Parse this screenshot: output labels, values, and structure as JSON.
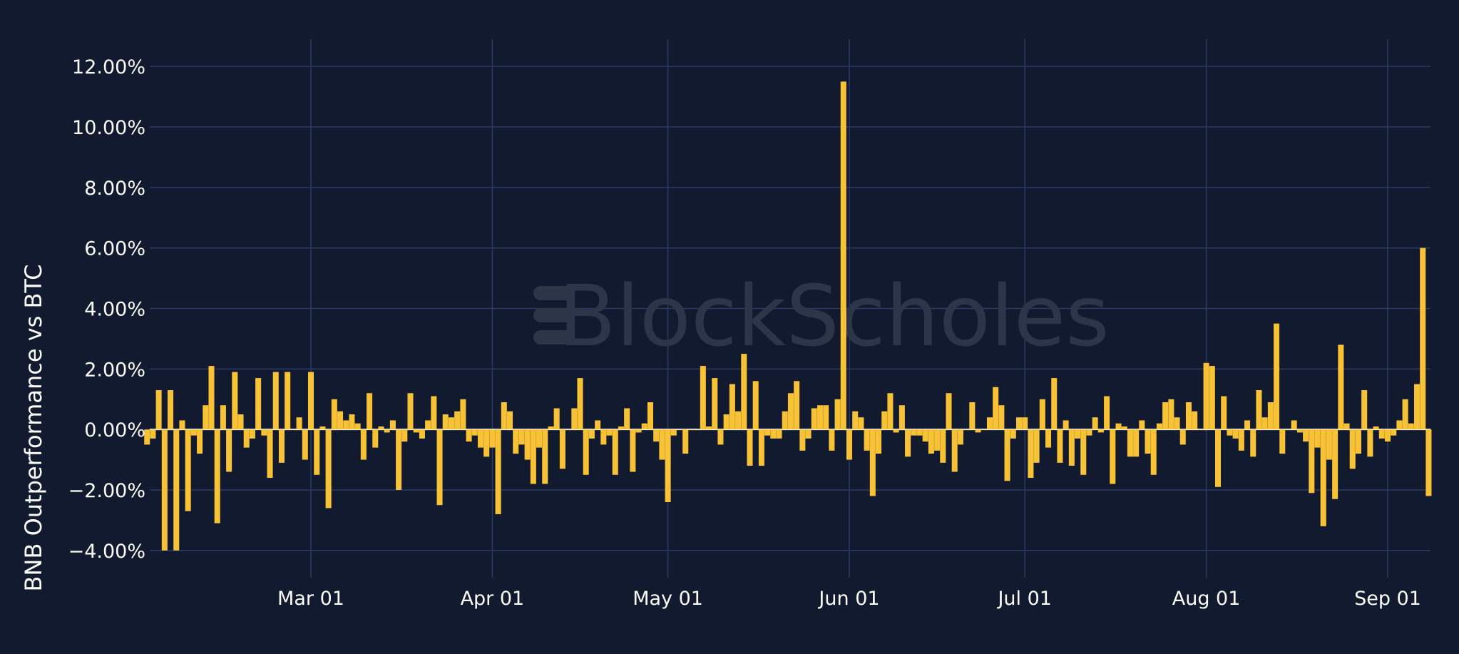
{
  "chart_data": {
    "type": "bar",
    "ylabel": "BNB Outperformance vs BTC",
    "xlabel": "",
    "ylim": [
      -4.9,
      12.9
    ],
    "y_ticks": [
      12,
      10,
      8,
      6,
      4,
      2,
      0,
      -2,
      -4
    ],
    "y_tick_labels": [
      "12.00%",
      "10.00%",
      "8.00%",
      "6.00%",
      "4.00%",
      "2.00%",
      "0.00%",
      "−2.00%",
      "−4.00%"
    ],
    "x_ticks": [
      "2023-03-01",
      "2023-04-01",
      "2023-05-01",
      "2023-06-01",
      "2023-07-01",
      "2023-08-01",
      "2023-09-01"
    ],
    "x_tick_labels": [
      "Mar 01",
      "Apr 01",
      "May 01",
      "Jun 01",
      "Jul 01",
      "Aug 01",
      "Sep 01"
    ],
    "start_date": "2023-02-01",
    "grid": true,
    "bar_color": "#f7c236",
    "background_color": "#111a2e",
    "watermark": "BlockScholes",
    "values": [
      -0.5,
      -0.3,
      1.3,
      -4.0,
      1.3,
      -4.0,
      0.3,
      -2.7,
      -0.2,
      -0.8,
      0.8,
      2.1,
      -3.1,
      0.8,
      -1.4,
      1.9,
      0.5,
      -0.6,
      -0.3,
      1.7,
      -0.2,
      -1.6,
      1.9,
      -1.1,
      1.9,
      0.0,
      0.4,
      -1.0,
      1.9,
      -1.5,
      0.1,
      -2.6,
      1.0,
      0.6,
      0.3,
      0.5,
      0.2,
      -1.0,
      1.2,
      -0.6,
      0.1,
      -0.1,
      0.3,
      -2.0,
      -0.4,
      1.2,
      -0.1,
      -0.3,
      0.3,
      1.1,
      -2.5,
      0.5,
      0.4,
      0.6,
      1.0,
      -0.4,
      -0.2,
      -0.6,
      -0.9,
      -0.6,
      -2.8,
      0.9,
      0.6,
      -0.8,
      -0.5,
      -1.0,
      -1.8,
      -0.6,
      -1.8,
      0.1,
      0.7,
      -1.3,
      0.0,
      0.7,
      1.7,
      -1.5,
      -0.3,
      0.3,
      -0.5,
      -0.2,
      -1.5,
      0.1,
      0.7,
      -1.4,
      -0.1,
      0.2,
      0.9,
      -0.4,
      -1.0,
      -2.4,
      -0.2,
      0.0,
      -0.8,
      0.0,
      0.0,
      2.1,
      0.1,
      1.7,
      -0.5,
      0.5,
      1.5,
      0.6,
      2.5,
      -1.2,
      1.6,
      -1.2,
      -0.2,
      -0.3,
      -0.3,
      0.6,
      1.2,
      1.6,
      -0.7,
      -0.3,
      0.7,
      0.8,
      0.8,
      -0.7,
      1.0,
      11.5,
      -1.0,
      0.6,
      0.4,
      -0.7,
      -2.2,
      -0.8,
      0.6,
      1.2,
      -0.1,
      0.8,
      -0.9,
      -0.2,
      -0.2,
      -0.4,
      -0.8,
      -0.7,
      -1.1,
      1.2,
      -1.4,
      -0.5,
      0.0,
      0.9,
      -0.1,
      0.0,
      0.4,
      1.4,
      0.8,
      -1.7,
      -0.3,
      0.4,
      0.4,
      -1.6,
      -1.1,
      1.0,
      -0.6,
      1.7,
      -1.1,
      0.3,
      -1.2,
      -0.3,
      -1.5,
      -0.2,
      0.4,
      -0.1,
      1.1,
      -1.8,
      0.2,
      0.1,
      -0.9,
      -0.9,
      0.3,
      -0.8,
      -1.5,
      0.2,
      0.9,
      1.0,
      0.4,
      -0.5,
      0.9,
      0.6,
      0.0,
      2.2,
      2.1,
      -1.9,
      1.1,
      -0.2,
      -0.3,
      -0.7,
      0.3,
      -0.9,
      1.3,
      0.4,
      0.9,
      3.5,
      -0.8,
      0.0,
      0.3,
      -0.1,
      -0.4,
      -2.1,
      -0.6,
      -3.2,
      -1.0,
      -2.3,
      2.8,
      0.2,
      -1.3,
      -0.8,
      1.3,
      -0.9,
      0.1,
      -0.3,
      -0.4,
      -0.2,
      0.3,
      1.0,
      0.2,
      1.5,
      6.0,
      -2.2
    ]
  }
}
